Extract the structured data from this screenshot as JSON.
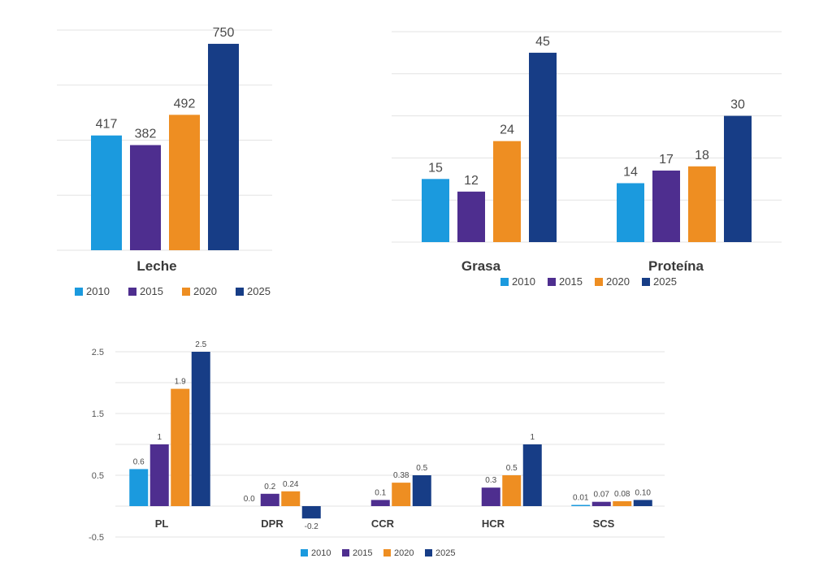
{
  "colors": {
    "2010": "#1b9ade",
    "2015": "#4e2e8f",
    "2020": "#ee8e22",
    "2025": "#173d86"
  },
  "chart_data": [
    {
      "type": "bar",
      "categories": [
        "Leche"
      ],
      "series": [
        {
          "name": "2010",
          "values": [
            417
          ]
        },
        {
          "name": "2015",
          "values": [
            382
          ]
        },
        {
          "name": "2020",
          "values": [
            492
          ]
        },
        {
          "name": "2025",
          "values": [
            750
          ]
        }
      ],
      "labels": [
        [
          "417"
        ],
        [
          "382"
        ],
        [
          "492"
        ],
        [
          "750"
        ]
      ],
      "ylim": [
        0,
        800
      ],
      "grid": true,
      "legend": "bottom-left"
    },
    {
      "type": "bar",
      "categories": [
        "Grasa",
        "Proteína"
      ],
      "series": [
        {
          "name": "2010",
          "values": [
            15,
            14
          ]
        },
        {
          "name": "2015",
          "values": [
            12,
            17
          ]
        },
        {
          "name": "2020",
          "values": [
            24,
            18
          ]
        },
        {
          "name": "2025",
          "values": [
            45,
            30
          ]
        }
      ],
      "labels": [
        [
          "15",
          "14"
        ],
        [
          "12",
          "17"
        ],
        [
          "24",
          "18"
        ],
        [
          "45",
          "30"
        ]
      ],
      "ylim": [
        0,
        50
      ],
      "grid": true,
      "legend": "bottom-center"
    },
    {
      "type": "bar",
      "categories": [
        "PL",
        "DPR",
        "CCR",
        "HCR",
        "SCS"
      ],
      "series": [
        {
          "name": "2010",
          "values": [
            0.6,
            0.0,
            0,
            0,
            0.01
          ]
        },
        {
          "name": "2015",
          "values": [
            1,
            0.2,
            0.1,
            0.3,
            0.07
          ]
        },
        {
          "name": "2020",
          "values": [
            1.9,
            0.24,
            0.38,
            0.5,
            0.08
          ]
        },
        {
          "name": "2025",
          "values": [
            2.5,
            -0.2,
            0.5,
            1,
            0.1
          ]
        }
      ],
      "labels": [
        [
          "0.6",
          "0.0",
          "",
          "",
          "0.01"
        ],
        [
          "1",
          "0.2",
          "0.1",
          "0.3",
          "0.07"
        ],
        [
          "1.9",
          "0.24",
          "0.38",
          "0.5",
          "0.08"
        ],
        [
          "2.5",
          "-0.2",
          "0.5",
          "1",
          "0.10"
        ]
      ],
      "yticks": [
        "2.5",
        "1.5",
        "0.5",
        "-0.5"
      ],
      "ytick_values": [
        2.5,
        1.5,
        0.5,
        -0.5
      ],
      "ylim": [
        -0.5,
        2.5
      ],
      "grid": true,
      "legend": "bottom-center"
    }
  ]
}
